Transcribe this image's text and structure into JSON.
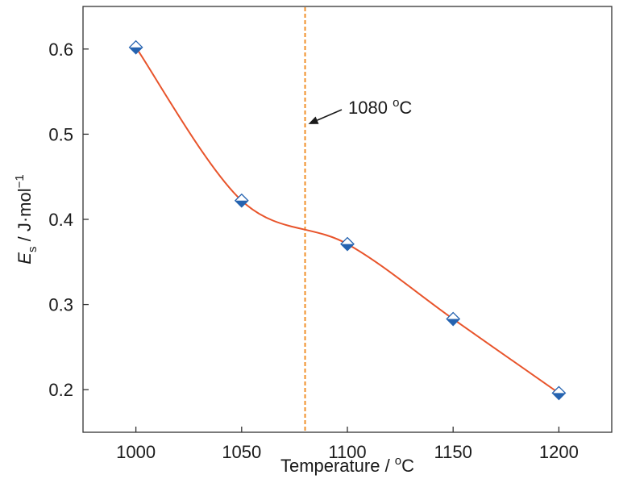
{
  "chart_data": {
    "type": "line",
    "x": [
      1000,
      1050,
      1100,
      1150,
      1200
    ],
    "series": [
      {
        "values": [
          0.602,
          0.422,
          0.371,
          0.283,
          0.196
        ]
      }
    ],
    "xticks": [
      1000,
      1050,
      1100,
      1150,
      1200
    ],
    "yticks": [
      0.2,
      0.3,
      0.4,
      0.5,
      0.6
    ],
    "xtick_labels": [
      "1000",
      "1050",
      "1100",
      "1150",
      "1200"
    ],
    "ytick_labels": [
      "0.2",
      "0.3",
      "0.4",
      "0.5",
      "0.6"
    ],
    "xlim": [
      975,
      1225
    ],
    "ylim": [
      0.15,
      0.65
    ],
    "xlabel": "Temperature / ",
    "xlabel_unit_sup": "o",
    "xlabel_unit": "C",
    "ylabel_symbol": "E",
    "ylabel_subscript": "s",
    "ylabel_unit": " / J·mol",
    "ylabel_unit_sup": "−1",
    "annotation": {
      "x": 1080,
      "line_style": "dashed",
      "text_value": "1080 ",
      "text_sup": "o",
      "text_unit": "C",
      "arrow_target_y": 0.51
    },
    "grid": false,
    "legend": "none",
    "colors": {
      "line": "#e8542b",
      "marker": "#2563b0",
      "vline": "#f0902a",
      "axis": "#333333"
    }
  }
}
